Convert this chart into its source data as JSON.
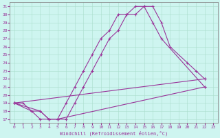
{
  "xlabel": "Windchill (Refroidissement éolien,°C)",
  "bg_color": "#cef5f0",
  "line_color": "#993399",
  "xlim": [
    -0.5,
    23.5
  ],
  "ylim": [
    16.5,
    31.5
  ],
  "xticks": [
    0,
    1,
    2,
    3,
    4,
    5,
    6,
    7,
    8,
    9,
    10,
    11,
    12,
    13,
    14,
    15,
    16,
    17,
    18,
    19,
    20,
    21,
    22,
    23
  ],
  "yticks": [
    17,
    18,
    19,
    20,
    21,
    22,
    23,
    24,
    25,
    26,
    27,
    28,
    29,
    30,
    31
  ],
  "line1_x": [
    0,
    1,
    2,
    3,
    4,
    5,
    6,
    7,
    8,
    9,
    10,
    11,
    12,
    13,
    14,
    15,
    16,
    17,
    22
  ],
  "line1_y": [
    19,
    19,
    18,
    17,
    17,
    17,
    19,
    21,
    23,
    25,
    27,
    28,
    30,
    30,
    31,
    31,
    29,
    27,
    21
  ],
  "line2_x": [
    0,
    3,
    4,
    5,
    6,
    7,
    8,
    9,
    10,
    11,
    12,
    13,
    14,
    15,
    16,
    17,
    18,
    20,
    21,
    22
  ],
  "line2_y": [
    19,
    18,
    17,
    17,
    17,
    19,
    21,
    23,
    25,
    27,
    28,
    30,
    30,
    31,
    31,
    29,
    26,
    24,
    23,
    22
  ],
  "line3_x": [
    0,
    2,
    3,
    4,
    5,
    22
  ],
  "line3_y": [
    19,
    18,
    18,
    17,
    17,
    21
  ],
  "line4_x": [
    0,
    22
  ],
  "line4_y": [
    19,
    22
  ]
}
